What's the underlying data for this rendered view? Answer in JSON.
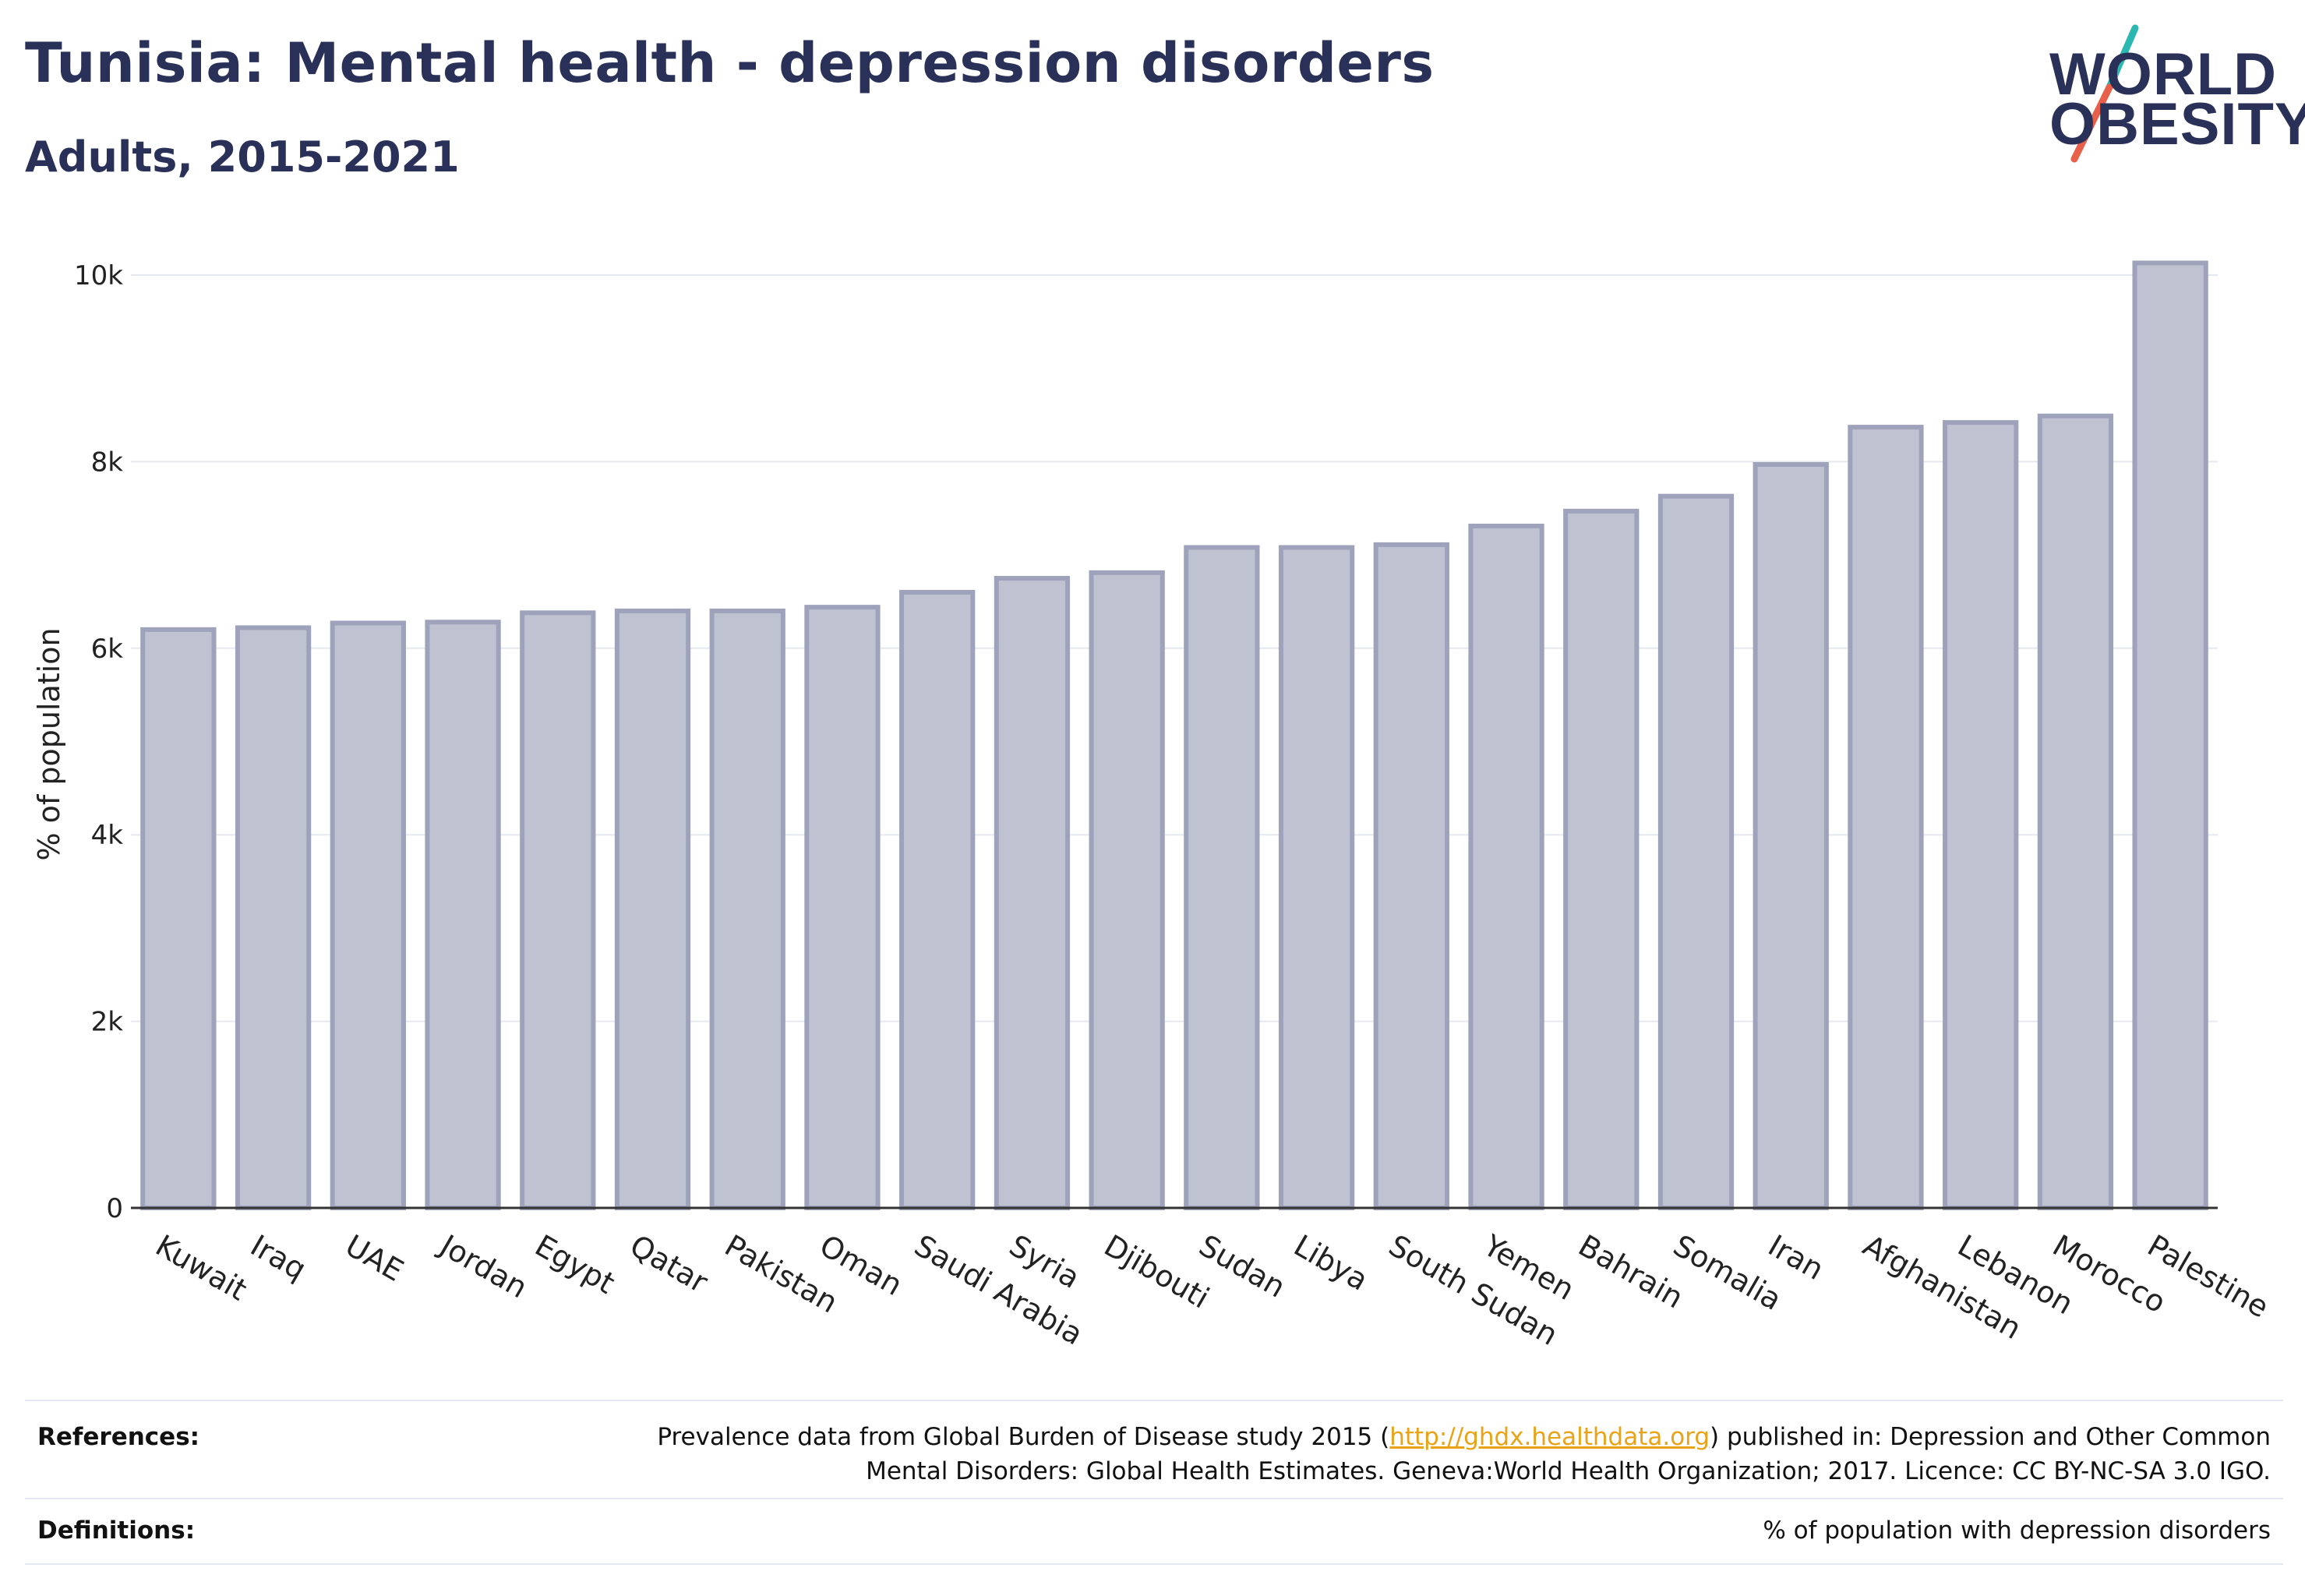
{
  "header": {
    "title": "Tunisia: Mental health - depression disorders",
    "subtitle": "Adults, 2015-2021"
  },
  "logo": {
    "line1": "WORLD",
    "line2": "OBESITY",
    "colors": {
      "text": "#2a3158",
      "slash_top": "#2bb8b0",
      "slash_bottom": "#e8604a"
    }
  },
  "chart_data": {
    "type": "bar",
    "ylabel": "% of population",
    "ylim": [
      0,
      10200
    ],
    "yticks": [
      {
        "value": 0,
        "label": "0"
      },
      {
        "value": 2000,
        "label": "2k"
      },
      {
        "value": 4000,
        "label": "4k"
      },
      {
        "value": 6000,
        "label": "6k"
      },
      {
        "value": 8000,
        "label": "8k"
      },
      {
        "value": 10000,
        "label": "10k"
      }
    ],
    "grid": true,
    "categories": [
      "Kuwait",
      "Iraq",
      "UAE",
      "Jordan",
      "Egypt",
      "Qatar",
      "Pakistan",
      "Oman",
      "Saudi Arabia",
      "Syria",
      "Djibouti",
      "Sudan",
      "Libya",
      "South Sudan",
      "Yemen",
      "Bahrain",
      "Somalia",
      "Iran",
      "Afghanistan",
      "Lebanon",
      "Morocco",
      "Palestine"
    ],
    "values": [
      6200,
      6220,
      6270,
      6280,
      6380,
      6400,
      6400,
      6440,
      6600,
      6750,
      6810,
      7080,
      7080,
      7110,
      7310,
      7470,
      7630,
      7970,
      8370,
      8420,
      8490,
      10130
    ],
    "colors": {
      "bar_fill": "#bfc2d0",
      "bar_stroke": "#9ea3bb",
      "grid": "#e6e8ef",
      "axis": "#333333"
    }
  },
  "footer": {
    "references_label": "References:",
    "references_text_before": "Prevalence data from Global Burden of Disease study 2015 (",
    "references_link": "http://ghdx.healthdata.org",
    "references_text_after": ") published in: Depression and Other Common",
    "references_line2": "Mental Disorders: Global Health Estimates. Geneva:World Health Organization; 2017. Licence: CC BY-NC-SA 3.0 IGO.",
    "definitions_label": "Definitions:",
    "definitions_text": "% of population with depression disorders"
  }
}
